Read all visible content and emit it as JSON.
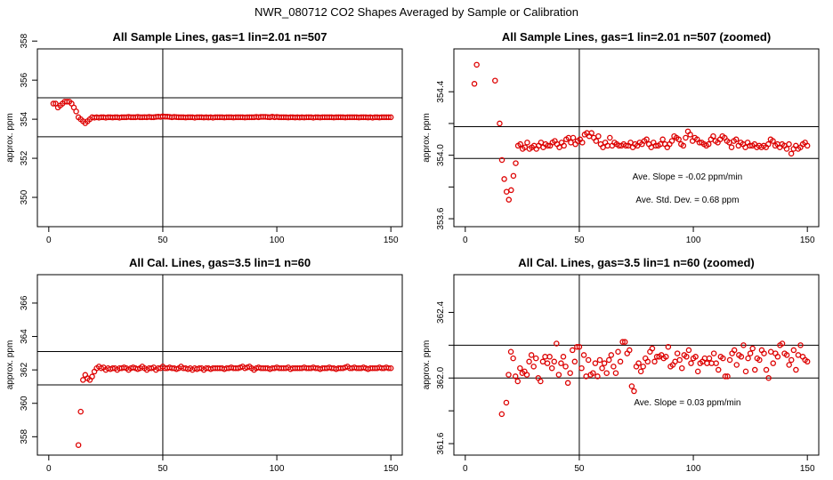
{
  "figure": {
    "title": "NWR_080712  CO2 Shapes Averaged by Sample or Calibration",
    "marker_color": "#dd0000"
  },
  "chart_data": [
    {
      "type": "scatter",
      "title": "All Sample Lines, gas=1 lin=2.01 n=507",
      "ylabel": "approx. ppm",
      "xlim": [
        -5,
        155
      ],
      "ylim": [
        348.5,
        357.6
      ],
      "xticks": [
        0,
        50,
        100,
        150
      ],
      "yticks": [
        350,
        352,
        354,
        356,
        358
      ],
      "hlines": [
        353.1,
        355.1
      ],
      "vline": 50,
      "annotations": [],
      "series": [
        {
          "x_start": 2,
          "x_end": 150,
          "y": [
            354.8,
            354.8,
            354.6,
            354.7,
            354.8,
            354.9,
            354.9,
            354.9,
            354.8,
            354.6,
            354.4,
            354.1,
            354.0,
            353.9,
            353.8,
            353.9,
            354.0,
            354.1,
            354.08,
            354.1,
            354.08,
            354.1,
            354.1,
            354.08,
            354.1,
            354.1,
            354.09,
            354.1,
            354.1,
            354.08,
            354.1,
            354.1,
            354.1,
            354.12,
            354.1,
            354.1,
            354.1,
            354.12,
            354.1,
            354.1,
            354.11,
            354.1,
            354.12,
            354.1,
            354.1,
            354.12,
            354.13,
            354.12,
            354.15,
            354.13,
            354.13,
            354.12,
            354.1,
            354.12,
            354.11,
            354.1,
            354.1,
            354.1,
            354.09,
            354.1,
            354.1,
            354.1,
            354.08,
            354.1,
            354.1,
            354.1,
            354.09,
            354.1,
            354.09,
            354.1,
            354.08,
            354.1,
            354.1,
            354.1,
            354.1,
            354.09,
            354.1,
            354.1,
            354.1,
            354.09,
            354.1,
            354.1,
            354.1,
            354.1,
            354.09,
            354.1,
            354.1,
            354.1,
            354.1,
            354.12,
            354.1,
            354.12,
            354.12,
            354.12,
            354.11,
            354.1,
            354.13,
            354.1,
            354.12,
            354.1,
            354.1,
            354.1,
            354.1,
            354.09,
            354.1,
            354.1,
            354.09,
            354.1,
            354.09,
            354.1,
            354.09,
            354.1,
            354.1,
            354.1,
            354.08,
            354.1,
            354.1,
            354.09,
            354.1,
            354.1,
            354.1,
            354.1,
            354.1,
            354.09,
            354.1,
            354.1,
            354.1,
            354.1,
            354.09,
            354.1,
            354.1,
            354.1,
            354.1,
            354.1,
            354.09,
            354.1,
            354.1,
            354.1,
            354.09,
            354.1,
            354.08,
            354.1,
            354.1,
            354.09,
            354.1,
            354.1,
            354.1,
            354.1,
            354.1
          ]
        }
      ]
    },
    {
      "type": "scatter",
      "title": "All Sample Lines, gas=1 lin=2.01 n=507 (zoomed)",
      "ylabel": "approx. ppm",
      "xlim": [
        -5,
        155
      ],
      "ylim": [
        353.55,
        354.67
      ],
      "xticks": [
        0,
        50,
        100,
        150
      ],
      "yticks": [
        353.6,
        353.8,
        354.0,
        354.2,
        354.4
      ],
      "ytick_labels": [
        "353.6",
        "",
        "354.0",
        "",
        "354.4"
      ],
      "hlines": [
        353.98,
        354.18
      ],
      "vline": 50,
      "annotations": [
        "Ave. Slope =  -0.02  ppm/min",
        "Ave. Std. Dev. =  0.68  ppm"
      ],
      "series": [
        {
          "x_start": 4,
          "x_end": 150,
          "y": [
            354.45,
            354.57,
            null,
            null,
            null,
            null,
            null,
            null,
            null,
            354.47,
            null,
            354.2,
            353.97,
            353.85,
            353.77,
            353.72,
            353.78,
            353.87,
            353.95,
            354.06,
            354.07,
            354.04,
            354.05,
            354.08,
            354.04,
            354.05,
            354.06,
            354.04,
            354.06,
            354.08,
            354.05,
            354.07,
            354.06,
            354.06,
            354.08,
            354.09,
            354.07,
            354.05,
            354.08,
            354.06,
            354.1,
            354.11,
            354.08,
            354.11,
            354.07,
            354.09,
            354.1,
            354.08,
            354.13,
            354.14,
            354.12,
            354.14,
            354.11,
            354.09,
            354.12,
            354.07,
            354.05,
            354.08,
            354.06,
            354.11,
            354.06,
            354.08,
            354.07,
            354.06,
            354.06,
            354.07,
            354.06,
            354.06,
            354.08,
            354.05,
            354.07,
            354.06,
            354.08,
            354.07,
            354.09,
            354.1,
            354.07,
            354.05,
            354.08,
            354.06,
            354.06,
            354.07,
            354.1,
            354.07,
            354.05,
            354.07,
            354.09,
            354.12,
            354.11,
            354.1,
            354.07,
            354.06,
            354.11,
            354.15,
            354.13,
            354.09,
            354.11,
            354.1,
            354.08,
            354.08,
            354.07,
            354.06,
            354.07,
            354.1,
            354.12,
            354.09,
            354.08,
            354.1,
            354.12,
            354.11,
            354.09,
            354.08,
            354.05,
            354.09,
            354.1,
            354.06,
            354.08,
            354.07,
            354.05,
            354.08,
            354.06,
            354.06,
            354.07,
            354.05,
            354.06,
            354.05,
            354.06,
            354.05,
            354.07,
            354.1,
            354.09,
            354.06,
            354.07,
            354.05,
            354.07,
            354.06,
            354.04,
            354.07,
            354.01,
            354.04,
            354.06,
            354.04,
            354.05,
            354.07,
            354.08,
            354.06
          ]
        }
      ]
    },
    {
      "type": "scatter",
      "title": "All Cal. Lines, gas=3.5 lin=1 n=60",
      "ylabel": "approx. ppm",
      "xlim": [
        -5,
        155
      ],
      "ylim": [
        356.9,
        367.7
      ],
      "xticks": [
        0,
        50,
        100,
        150
      ],
      "yticks": [
        358,
        360,
        362,
        364,
        366
      ],
      "hlines": [
        361.1,
        363.1
      ],
      "vline": 50,
      "annotations": [],
      "series": [
        {
          "x_start": 13,
          "x_end": 150,
          "y": [
            357.5,
            359.5,
            361.4,
            361.7,
            361.5,
            361.4,
            361.6,
            361.9,
            362.1,
            362.2,
            362.1,
            362.15,
            362.0,
            362.1,
            362.05,
            362.1,
            362.1,
            362.0,
            362.1,
            362.1,
            362.15,
            362.1,
            362.0,
            362.1,
            362.15,
            362.1,
            362.05,
            362.1,
            362.2,
            362.1,
            362.0,
            362.1,
            362.1,
            362.15,
            362.0,
            362.1,
            362.1,
            362.2,
            362.1,
            362.1,
            362.15,
            362.1,
            362.1,
            362.05,
            362.1,
            362.2,
            362.1,
            362.1,
            362.05,
            362.1,
            362.0,
            362.1,
            362.05,
            362.1,
            362.1,
            362.0,
            362.1,
            362.1,
            362.05,
            362.1,
            362.1,
            362.1,
            362.1,
            362.1,
            362.05,
            362.1,
            362.1,
            362.15,
            362.1,
            362.1,
            362.1,
            362.15,
            362.2,
            362.1,
            362.15,
            362.2,
            362.1,
            362.0,
            362.1,
            362.15,
            362.1,
            362.1,
            362.1,
            362.1,
            362.05,
            362.1,
            362.1,
            362.15,
            362.1,
            362.1,
            362.1,
            362.1,
            362.15,
            362.05,
            362.1,
            362.1,
            362.1,
            362.1,
            362.1,
            362.15,
            362.1,
            362.1,
            362.1,
            362.15,
            362.1,
            362.1,
            362.05,
            362.1,
            362.1,
            362.1,
            362.15,
            362.1,
            362.1,
            362.05,
            362.1,
            362.1,
            362.1,
            362.15,
            362.2,
            362.1,
            362.1,
            362.15,
            362.1,
            362.1,
            362.1,
            362.15,
            362.1,
            362.05,
            362.1,
            362.1,
            362.1,
            362.1,
            362.15,
            362.1,
            362.1,
            362.15,
            362.1,
            362.1
          ]
        }
      ]
    },
    {
      "type": "scatter",
      "title": "All Cal. Lines, gas=3.5 lin=1 n=60 (zoomed)",
      "ylabel": "approx. ppm",
      "xlim": [
        -5,
        155
      ],
      "ylim": [
        361.53,
        362.63
      ],
      "xticks": [
        0,
        50,
        100,
        150
      ],
      "yticks": [
        361.6,
        361.8,
        362.0,
        362.2,
        362.4
      ],
      "ytick_labels": [
        "361.6",
        "",
        "362.0",
        "",
        "362.4"
      ],
      "hlines": [
        362.0,
        362.2
      ],
      "vline": 50,
      "annotations": [
        "Ave. Slope =  0.03  ppm/min"
      ],
      "series": [
        {
          "x_start": 16,
          "x_end": 150,
          "y": [
            361.78,
            null,
            361.85,
            362.02,
            362.16,
            362.12,
            362.01,
            361.98,
            362.06,
            362.03,
            362.04,
            362.02,
            362.1,
            362.14,
            362.07,
            362.12,
            362.0,
            361.98,
            362.1,
            362.13,
            362.09,
            362.13,
            362.06,
            362.1,
            362.21,
            362.02,
            362.09,
            362.13,
            362.07,
            361.97,
            362.03,
            362.17,
            362.1,
            362.19,
            362.19,
            362.06,
            362.14,
            362.01,
            362.11,
            362.02,
            362.03,
            362.09,
            362.01,
            362.11,
            362.06,
            362.09,
            362.03,
            362.11,
            362.14,
            362.07,
            362.03,
            362.16,
            362.1,
            362.22,
            362.22,
            362.15,
            362.17,
            361.95,
            361.92,
            362.07,
            362.09,
            362.04,
            362.07,
            362.12,
            362.1,
            362.16,
            362.18,
            362.1,
            362.13,
            362.13,
            362.14,
            362.12,
            362.13,
            362.19,
            362.07,
            362.08,
            362.1,
            362.15,
            362.11,
            362.06,
            362.14,
            362.13,
            362.17,
            362.09,
            362.12,
            362.13,
            362.04,
            362.09,
            362.1,
            362.12,
            362.09,
            362.12,
            362.09,
            362.15,
            362.09,
            362.05,
            362.13,
            362.12,
            362.01,
            362.01,
            362.11,
            362.15,
            362.17,
            362.08,
            362.14,
            362.13,
            362.2,
            362.04,
            362.12,
            362.15,
            362.18,
            362.05,
            362.12,
            362.11,
            362.17,
            362.15,
            362.05,
            362.0,
            362.16,
            362.09,
            362.15,
            362.13,
            362.2,
            362.21,
            362.15,
            362.14,
            362.08,
            362.11,
            362.17,
            362.05,
            362.14,
            362.2,
            362.13,
            362.11,
            362.1
          ]
        }
      ]
    }
  ]
}
